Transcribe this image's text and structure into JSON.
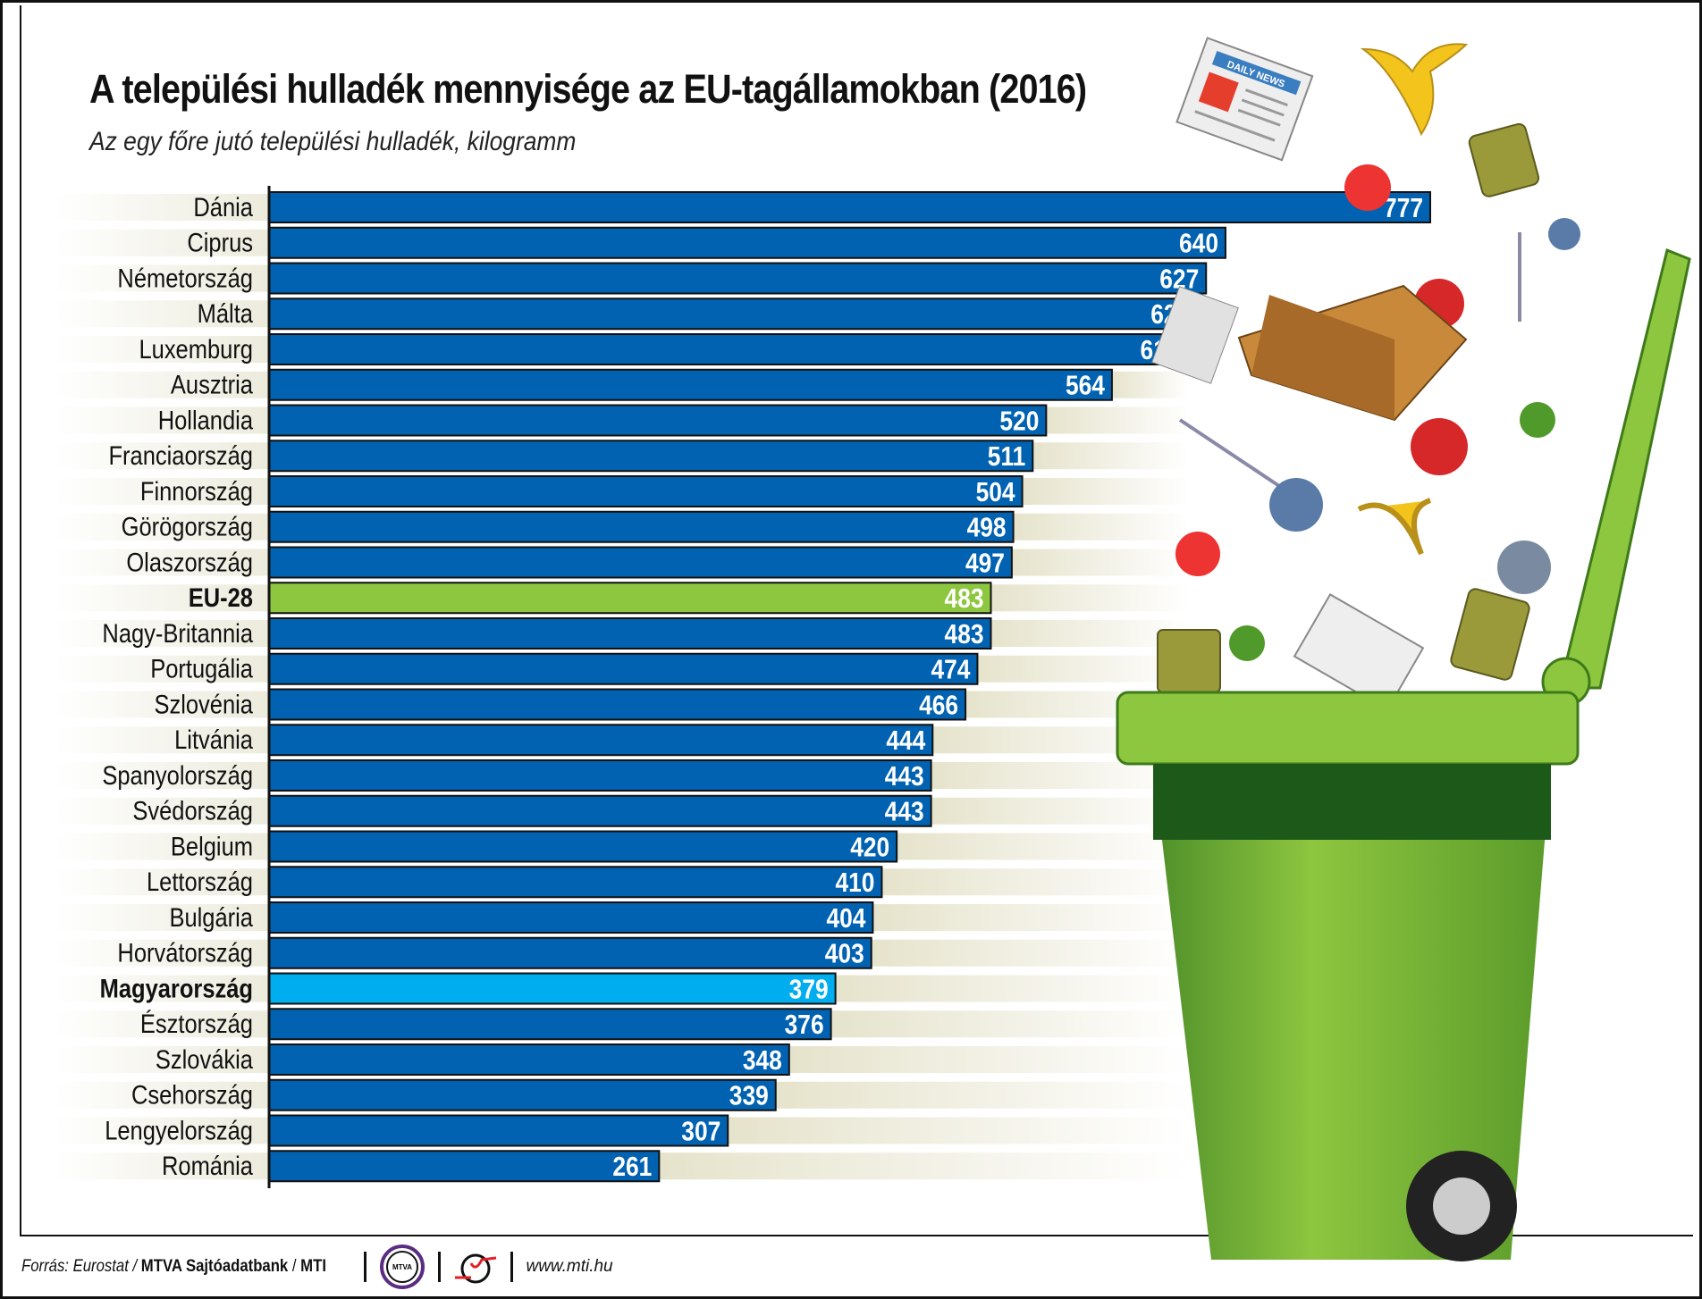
{
  "title": "A települési hulladék mennyisége az EU-tagállamokban (2016)",
  "subtitle": "Az egy főre jutó települési hulladék, kilogramm",
  "chart_data": {
    "type": "bar",
    "orientation": "horizontal",
    "title": "A települési hulladék mennyisége az EU-tagállamokban (2016)",
    "subtitle": "Az egy főre jutó települési hulladék, kilogramm",
    "categories": [
      "Dánia",
      "Ciprus",
      "Németország",
      "Málta",
      "Luxemburg",
      "Ausztria",
      "Hollandia",
      "Franciaország",
      "Finnország",
      "Görögország",
      "Olaszország",
      "EU-28",
      "Nagy-Britannia",
      "Portugália",
      "Szlovénia",
      "Litvánia",
      "Spanyolország",
      "Svédország",
      "Belgium",
      "Lettország",
      "Bulgária",
      "Horvátország",
      "Magyarország",
      "Észtország",
      "Szlovákia",
      "Csehország",
      "Lengyelország",
      "Románia"
    ],
    "values": [
      777,
      640,
      627,
      621,
      614,
      564,
      520,
      511,
      504,
      498,
      497,
      483,
      483,
      474,
      466,
      444,
      443,
      443,
      420,
      410,
      404,
      403,
      379,
      376,
      348,
      339,
      307,
      261
    ],
    "highlight": {
      "EU-28": "#8dc63f",
      "Magyarország": "#00aeef"
    },
    "bold_categories": [
      "EU-28",
      "Magyarország"
    ],
    "bar_color": "#0062b1",
    "data_labels": true,
    "grid": false,
    "xlim": [
      0,
      777
    ]
  },
  "footer": {
    "source_prefix": "Forrás: Eurostat / ",
    "source_bold": "MTVA Sajtóadatbank",
    "source_sep": " / ",
    "source_mti": "MTI",
    "logo_mtva": "MTVA",
    "url": "www.mti.hu"
  },
  "illustration": {
    "newspaper_text": "DAILY NEWS"
  }
}
